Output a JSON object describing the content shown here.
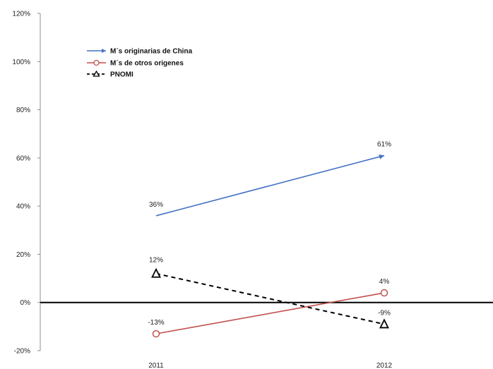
{
  "chart_data": {
    "type": "line",
    "categories": [
      "2011",
      "2012"
    ],
    "ylim": [
      -20,
      120
    ],
    "yticks": [
      -20,
      0,
      20,
      40,
      60,
      80,
      100,
      120
    ],
    "ytick_labels": [
      "-20%",
      "0%",
      "20%",
      "40%",
      "60%",
      "80%",
      "100%",
      "120%"
    ],
    "grid": false,
    "legend_position": "top-left",
    "series": [
      {
        "name": "M´s originarias de China",
        "values": [
          36,
          61
        ],
        "labels": [
          "36%",
          "61%"
        ],
        "color": "#4472c4",
        "line_style": "solid",
        "marker": "arrow"
      },
      {
        "name": "M´s de otros origenes",
        "values": [
          -13,
          4
        ],
        "labels": [
          "-13%",
          "4%"
        ],
        "color": "#c0504d",
        "line_style": "solid",
        "marker": "circle"
      },
      {
        "name": "PNOMI",
        "values": [
          12,
          -9
        ],
        "labels": [
          "12%",
          "-9%"
        ],
        "color": "#000000",
        "line_style": "dashed",
        "marker": "triangle"
      }
    ]
  }
}
